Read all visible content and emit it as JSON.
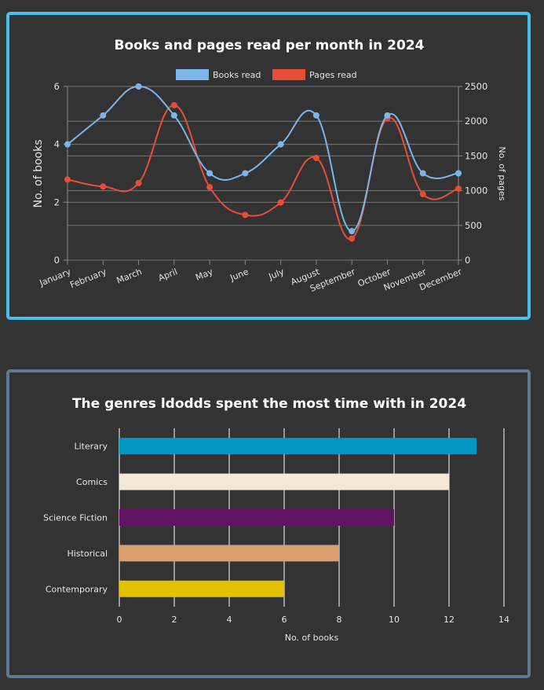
{
  "chart_data": [
    {
      "type": "line",
      "title": "Books and pages read per month in 2024",
      "categories": [
        "January",
        "February",
        "March",
        "April",
        "May",
        "June",
        "July",
        "August",
        "September",
        "October",
        "November",
        "December"
      ],
      "series": [
        {
          "name": "Books read",
          "axis": "left",
          "color": "#7cb4ec",
          "values": [
            4,
            5,
            6,
            5,
            3,
            3,
            4,
            5,
            1,
            5,
            3,
            3
          ]
        },
        {
          "name": "Pages read",
          "axis": "right",
          "color": "#e84e37",
          "values": [
            1160,
            1060,
            1110,
            2230,
            1050,
            650,
            830,
            1470,
            310,
            2040,
            950,
            1030
          ]
        }
      ],
      "ylabel": "No. of books",
      "y2label": "No. of pages",
      "ylim": [
        0,
        6
      ],
      "y2lim": [
        0,
        2500
      ],
      "yticks": [
        0,
        2,
        4,
        6
      ],
      "y2ticks": [
        0,
        500,
        1000,
        1500,
        2000,
        2500
      ],
      "legend": "top",
      "grid": true,
      "smooth": true
    },
    {
      "type": "bar",
      "orientation": "horizontal",
      "title": "The genres ldodds spent the most time with in 2024",
      "categories": [
        "Literary",
        "Comics",
        "Science Fiction",
        "Historical",
        "Contemporary"
      ],
      "values": [
        13,
        12,
        10,
        8,
        6
      ],
      "colors": [
        "#0099c6",
        "#f3e9d5",
        "#621263",
        "#d99e6e",
        "#e3c000"
      ],
      "xlabel": "No. of books",
      "xlim": [
        0,
        14
      ],
      "xticks": [
        0,
        2,
        4,
        6,
        8,
        10,
        12,
        14
      ],
      "grid": true
    }
  ]
}
